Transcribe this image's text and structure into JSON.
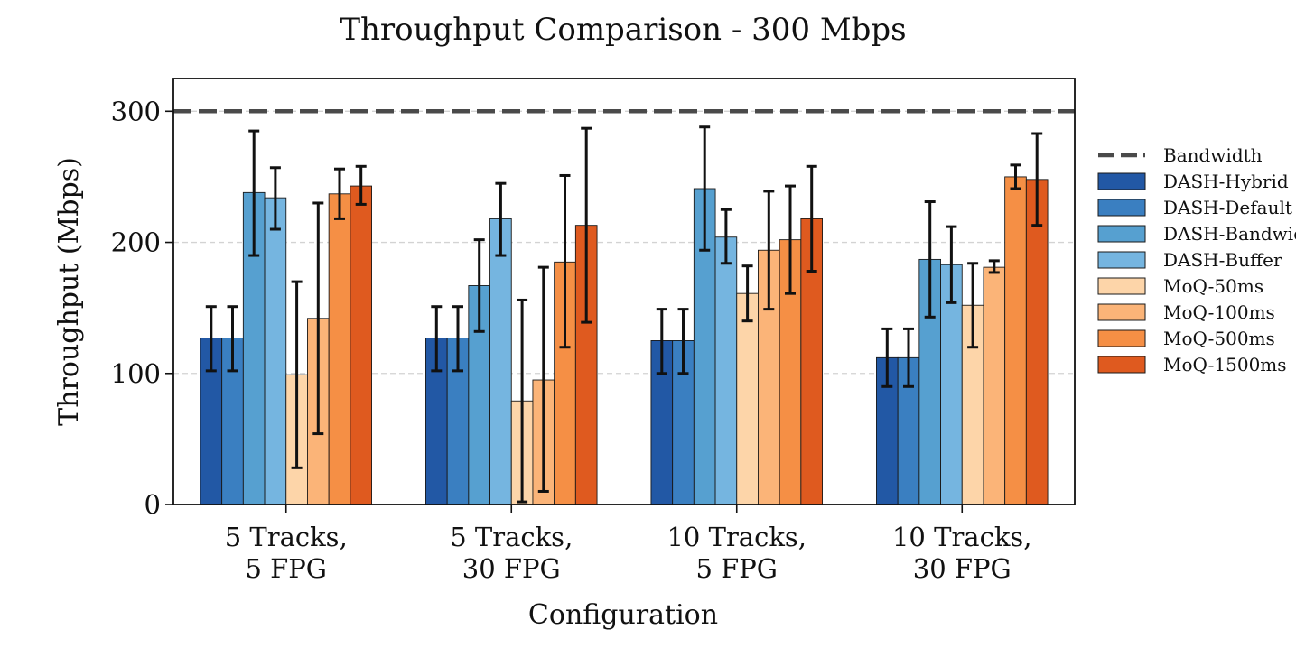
{
  "chart_data": {
    "type": "bar",
    "title": "Throughput Comparison - 300 Mbps",
    "xlabel": "Configuration",
    "ylabel": "Throughput (Mbps)",
    "ylim": [
      0,
      325
    ],
    "yticks": [
      0,
      100,
      200,
      300
    ],
    "grid": "horizontal-dashed",
    "legend_position": "right-outside",
    "categories": [
      [
        "5 Tracks,",
        "5 FPG"
      ],
      [
        "5 Tracks,",
        "30 FPG"
      ],
      [
        "10 Tracks,",
        "5 FPG"
      ],
      [
        "10 Tracks,",
        "30 FPG"
      ]
    ],
    "reference_line": {
      "name": "Bandwidth",
      "value": 300,
      "color": "#4a4a4a"
    },
    "series": [
      {
        "name": "DASH-Hybrid",
        "color": "#2258a5",
        "values": [
          127,
          127,
          125,
          112
        ],
        "err_low": [
          102,
          102,
          100,
          90
        ],
        "err_high": [
          151,
          151,
          149,
          134
        ]
      },
      {
        "name": "DASH-Default",
        "color": "#3a7fc1",
        "values": [
          127,
          127,
          125,
          112
        ],
        "err_low": [
          102,
          102,
          100,
          90
        ],
        "err_high": [
          151,
          151,
          149,
          134
        ]
      },
      {
        "name": "DASH-Bandwidth",
        "color": "#56a0d0",
        "values": [
          238,
          167,
          241,
          187
        ],
        "err_low": [
          190,
          132,
          194,
          143
        ],
        "err_high": [
          285,
          202,
          288,
          231
        ]
      },
      {
        "name": "DASH-Buffer",
        "color": "#75b5e0",
        "values": [
          234,
          218,
          204,
          183
        ],
        "err_low": [
          210,
          190,
          184,
          154
        ],
        "err_high": [
          257,
          245,
          225,
          212
        ]
      },
      {
        "name": "MoQ-50ms",
        "color": "#fdd5a9",
        "values": [
          99,
          79,
          161,
          152
        ],
        "err_low": [
          28,
          2,
          140,
          120
        ],
        "err_high": [
          170,
          156,
          182,
          184
        ]
      },
      {
        "name": "MoQ-100ms",
        "color": "#fbb478",
        "values": [
          142,
          95,
          194,
          181
        ],
        "err_low": [
          54,
          10,
          149,
          177
        ],
        "err_high": [
          230,
          181,
          239,
          186
        ]
      },
      {
        "name": "MoQ-500ms",
        "color": "#f58f45",
        "values": [
          237,
          185,
          202,
          250
        ],
        "err_low": [
          218,
          120,
          161,
          241
        ],
        "err_high": [
          256,
          251,
          243,
          259
        ]
      },
      {
        "name": "MoQ-1500ms",
        "color": "#df5a1f",
        "values": [
          243,
          213,
          218,
          248
        ],
        "err_low": [
          229,
          139,
          178,
          213
        ],
        "err_high": [
          258,
          287,
          258,
          283
        ]
      }
    ]
  }
}
